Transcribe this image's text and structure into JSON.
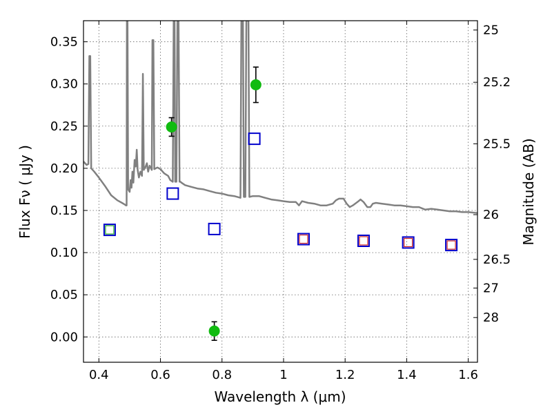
{
  "chart_data": {
    "type": "scatter",
    "title": "",
    "xlabel": "Wavelength  λ (μm)",
    "ylabel": "Flux  Fν  ( μJy )",
    "ylabel_right": "Magnitude (AB)",
    "xlim": [
      0.35,
      1.63
    ],
    "ylim": [
      -0.03,
      0.375
    ],
    "grid": true,
    "legend": "none",
    "x_ticks": [
      0.4,
      0.6,
      0.8,
      1.0,
      1.2,
      1.4,
      1.6
    ],
    "x_tick_labels": [
      "0.4",
      "0.6",
      "0.8",
      "1",
      "1.2",
      "1.4",
      "1.6"
    ],
    "y_ticks": [
      0.0,
      0.05,
      0.1,
      0.15,
      0.2,
      0.25,
      0.3,
      0.35
    ],
    "y_tick_labels": [
      "0.00",
      "0.05",
      "0.10",
      "0.15",
      "0.20",
      "0.25",
      "0.30",
      "0.35"
    ],
    "right_ticks": [
      {
        "flux": 0.364,
        "label": "25"
      },
      {
        "flux": 0.302,
        "label": "25.2"
      },
      {
        "flux": 0.229,
        "label": "25.5"
      },
      {
        "flux": 0.145,
        "label": "26"
      },
      {
        "flux": 0.092,
        "label": "26.5"
      },
      {
        "flux": 0.058,
        "label": "27"
      },
      {
        "flux": 0.023,
        "label": "28"
      }
    ],
    "series": [
      {
        "marker": "circle",
        "color": "#11bb11",
        "points": [
          {
            "x": 0.636,
            "y": 0.249,
            "err": 0.011
          },
          {
            "x": 0.775,
            "y": 0.007,
            "err": 0.011
          },
          {
            "x": 0.91,
            "y": 0.299,
            "err": 0.021
          }
        ]
      },
      {
        "marker": "open-square",
        "color": "#0000cc",
        "points": [
          {
            "x": 0.435,
            "y": 0.127
          },
          {
            "x": 0.64,
            "y": 0.17
          },
          {
            "x": 0.775,
            "y": 0.128
          },
          {
            "x": 0.905,
            "y": 0.235
          },
          {
            "x": 1.065,
            "y": 0.116
          },
          {
            "x": 1.26,
            "y": 0.114
          },
          {
            "x": 1.405,
            "y": 0.112
          },
          {
            "x": 1.545,
            "y": 0.109
          }
        ]
      },
      {
        "marker": "open-square",
        "color": "#cc2222",
        "points": [
          {
            "x": 1.065,
            "y": 0.116
          },
          {
            "x": 1.26,
            "y": 0.114
          },
          {
            "x": 1.405,
            "y": 0.112
          },
          {
            "x": 1.545,
            "y": 0.109
          }
        ]
      },
      {
        "marker": "open-square",
        "color": "#22aa22",
        "points": [
          {
            "x": 0.435,
            "y": 0.127
          }
        ]
      }
    ],
    "sed_line": {
      "color": "#808080",
      "points": [
        [
          0.35,
          0.208
        ],
        [
          0.36,
          0.204
        ],
        [
          0.366,
          0.205
        ],
        [
          0.369,
          0.333
        ],
        [
          0.372,
          0.333
        ],
        [
          0.375,
          0.2
        ],
        [
          0.385,
          0.196
        ],
        [
          0.4,
          0.189
        ],
        [
          0.42,
          0.179
        ],
        [
          0.44,
          0.168
        ],
        [
          0.46,
          0.162
        ],
        [
          0.475,
          0.159
        ],
        [
          0.484,
          0.157
        ],
        [
          0.488,
          0.156
        ],
        [
          0.49,
          0.156
        ],
        [
          0.491,
          0.375
        ],
        [
          0.493,
          0.375
        ],
        [
          0.495,
          0.175
        ],
        [
          0.5,
          0.172
        ],
        [
          0.503,
          0.186
        ],
        [
          0.506,
          0.177
        ],
        [
          0.509,
          0.196
        ],
        [
          0.512,
          0.183
        ],
        [
          0.516,
          0.21
        ],
        [
          0.52,
          0.202
        ],
        [
          0.523,
          0.222
        ],
        [
          0.526,
          0.198
        ],
        [
          0.53,
          0.189
        ],
        [
          0.535,
          0.196
        ],
        [
          0.54,
          0.191
        ],
        [
          0.543,
          0.312
        ],
        [
          0.546,
          0.198
        ],
        [
          0.552,
          0.202
        ],
        [
          0.556,
          0.206
        ],
        [
          0.56,
          0.196
        ],
        [
          0.565,
          0.203
        ],
        [
          0.572,
          0.198
        ],
        [
          0.574,
          0.352
        ],
        [
          0.577,
          0.352
        ],
        [
          0.58,
          0.199
        ],
        [
          0.59,
          0.201
        ],
        [
          0.6,
          0.199
        ],
        [
          0.612,
          0.194
        ],
        [
          0.625,
          0.191
        ],
        [
          0.632,
          0.186
        ],
        [
          0.64,
          0.184
        ],
        [
          0.643,
          0.375
        ],
        [
          0.646,
          0.375
        ],
        [
          0.648,
          0.184
        ],
        [
          0.652,
          0.184
        ],
        [
          0.655,
          0.375
        ],
        [
          0.659,
          0.375
        ],
        [
          0.662,
          0.184
        ],
        [
          0.665,
          0.184
        ],
        [
          0.668,
          0.183
        ],
        [
          0.68,
          0.18
        ],
        [
          0.7,
          0.178
        ],
        [
          0.72,
          0.176
        ],
        [
          0.74,
          0.175
        ],
        [
          0.76,
          0.173
        ],
        [
          0.78,
          0.171
        ],
        [
          0.8,
          0.17
        ],
        [
          0.82,
          0.168
        ],
        [
          0.84,
          0.167
        ],
        [
          0.86,
          0.165
        ],
        [
          0.863,
          0.375
        ],
        [
          0.868,
          0.375
        ],
        [
          0.871,
          0.166
        ],
        [
          0.876,
          0.166
        ],
        [
          0.879,
          0.375
        ],
        [
          0.886,
          0.375
        ],
        [
          0.889,
          0.166
        ],
        [
          0.9,
          0.167
        ],
        [
          0.92,
          0.167
        ],
        [
          0.94,
          0.165
        ],
        [
          0.96,
          0.163
        ],
        [
          0.98,
          0.162
        ],
        [
          1.0,
          0.161
        ],
        [
          1.02,
          0.16
        ],
        [
          1.04,
          0.16
        ],
        [
          1.05,
          0.156
        ],
        [
          1.06,
          0.161
        ],
        [
          1.08,
          0.159
        ],
        [
          1.1,
          0.158
        ],
        [
          1.12,
          0.156
        ],
        [
          1.14,
          0.156
        ],
        [
          1.16,
          0.158
        ],
        [
          1.17,
          0.162
        ],
        [
          1.18,
          0.164
        ],
        [
          1.195,
          0.164
        ],
        [
          1.205,
          0.158
        ],
        [
          1.215,
          0.154
        ],
        [
          1.225,
          0.156
        ],
        [
          1.24,
          0.16
        ],
        [
          1.25,
          0.163
        ],
        [
          1.26,
          0.16
        ],
        [
          1.272,
          0.154
        ],
        [
          1.282,
          0.154
        ],
        [
          1.29,
          0.158
        ],
        [
          1.3,
          0.159
        ],
        [
          1.32,
          0.158
        ],
        [
          1.34,
          0.157
        ],
        [
          1.36,
          0.156
        ],
        [
          1.38,
          0.156
        ],
        [
          1.4,
          0.155
        ],
        [
          1.42,
          0.154
        ],
        [
          1.44,
          0.154
        ],
        [
          1.46,
          0.151
        ],
        [
          1.48,
          0.152
        ],
        [
          1.5,
          0.151
        ],
        [
          1.52,
          0.15
        ],
        [
          1.54,
          0.149
        ],
        [
          1.56,
          0.149
        ],
        [
          1.58,
          0.148
        ],
        [
          1.6,
          0.148
        ],
        [
          1.63,
          0.147
        ]
      ]
    }
  }
}
